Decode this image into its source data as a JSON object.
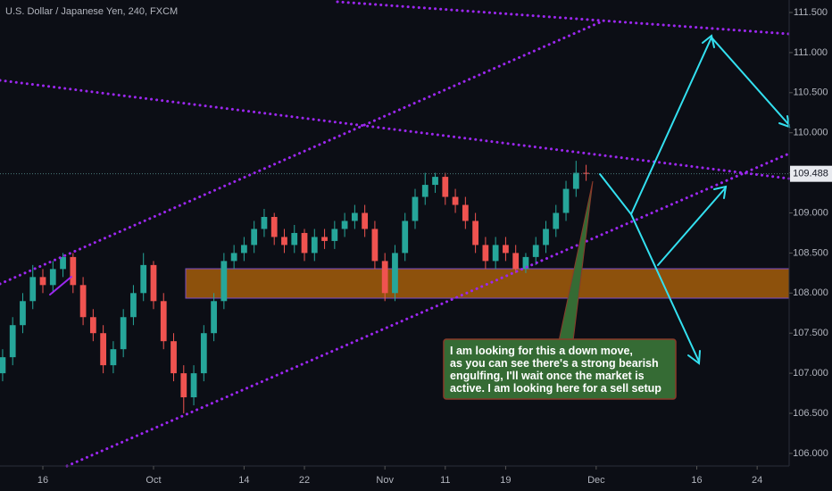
{
  "chart_data": {
    "type": "candlestick",
    "title": "U.S. Dollar / Japanese Yen, 240, FXCM",
    "x": [
      -4,
      -3,
      -2,
      -1,
      0,
      1,
      2,
      3,
      4,
      5,
      6,
      7,
      8,
      9,
      10,
      11,
      12,
      13,
      14,
      15,
      16,
      17,
      18,
      19,
      20,
      21,
      22,
      23,
      24,
      25,
      26,
      27,
      28,
      29,
      30,
      31,
      32,
      33,
      34,
      35,
      36,
      37,
      38,
      39,
      40,
      41,
      42,
      43,
      44,
      45,
      46,
      47,
      48,
      49,
      50,
      51,
      52,
      53,
      54
    ],
    "open": [
      107.0,
      107.2,
      107.6,
      107.9,
      108.2,
      108.1,
      108.3,
      108.45,
      108.1,
      107.7,
      107.5,
      107.1,
      107.3,
      107.7,
      108.0,
      108.35,
      107.9,
      107.4,
      107.0,
      106.7,
      107.0,
      107.5,
      107.9,
      108.4,
      108.5,
      108.6,
      108.8,
      108.95,
      108.7,
      108.6,
      108.75,
      108.5,
      108.7,
      108.65,
      108.8,
      108.9,
      109.0,
      108.8,
      108.4,
      108.0,
      108.5,
      108.9,
      109.2,
      109.35,
      109.45,
      109.2,
      109.1,
      108.9,
      108.6,
      108.4,
      108.6,
      108.5,
      108.3,
      108.45,
      108.6,
      108.8,
      109.0,
      109.3,
      109.5
    ],
    "high": [
      107.3,
      107.7,
      108.0,
      108.35,
      108.3,
      108.4,
      108.5,
      108.5,
      108.2,
      107.8,
      107.6,
      107.4,
      107.8,
      108.1,
      108.5,
      108.4,
      108.0,
      107.5,
      107.1,
      107.1,
      107.6,
      108.0,
      108.5,
      108.6,
      108.7,
      108.9,
      109.05,
      109.0,
      108.8,
      108.85,
      108.8,
      108.8,
      108.8,
      108.9,
      109.0,
      109.1,
      109.1,
      108.9,
      108.5,
      108.6,
      109.0,
      109.3,
      109.5,
      109.5,
      109.5,
      109.3,
      109.2,
      109.0,
      108.7,
      108.7,
      108.7,
      108.6,
      108.5,
      108.7,
      108.9,
      109.1,
      109.4,
      109.65,
      109.6
    ],
    "low": [
      106.9,
      107.1,
      107.5,
      107.8,
      108.0,
      108.0,
      108.2,
      108.0,
      107.6,
      107.4,
      107.0,
      107.0,
      107.2,
      107.6,
      107.9,
      107.8,
      107.3,
      106.9,
      106.5,
      106.6,
      106.9,
      107.4,
      107.8,
      108.3,
      108.4,
      108.5,
      108.7,
      108.6,
      108.5,
      108.5,
      108.4,
      108.4,
      108.55,
      108.55,
      108.7,
      108.8,
      108.7,
      108.3,
      107.9,
      107.9,
      108.4,
      108.8,
      109.1,
      109.25,
      109.1,
      109.0,
      108.8,
      108.5,
      108.3,
      108.3,
      108.4,
      108.25,
      108.25,
      108.35,
      108.5,
      108.7,
      108.9,
      109.2,
      109.4
    ],
    "close": [
      107.2,
      107.6,
      107.9,
      108.2,
      108.1,
      108.3,
      108.45,
      108.1,
      107.7,
      107.5,
      107.1,
      107.3,
      107.7,
      108.0,
      108.35,
      107.9,
      107.4,
      107.0,
      106.7,
      107.0,
      107.5,
      107.9,
      108.4,
      108.5,
      108.6,
      108.8,
      108.95,
      108.7,
      108.6,
      108.75,
      108.5,
      108.7,
      108.65,
      108.8,
      108.9,
      109.0,
      108.8,
      108.4,
      108.0,
      108.5,
      108.9,
      109.2,
      109.35,
      109.45,
      109.2,
      109.1,
      108.9,
      108.6,
      108.4,
      108.6,
      108.5,
      108.3,
      108.45,
      108.6,
      108.8,
      109.0,
      109.3,
      109.5,
      109.488
    ],
    "up_color": "#26a69a",
    "down_color": "#ef5350",
    "xlim": [
      -4.26,
      74.18
    ],
    "xticks": [
      {
        "value": 0,
        "label": "16"
      },
      {
        "value": 11,
        "label": "Oct"
      },
      {
        "value": 20,
        "label": "14"
      },
      {
        "value": 26,
        "label": "22"
      },
      {
        "value": 34,
        "label": "Nov"
      },
      {
        "value": 40,
        "label": "11"
      },
      {
        "value": 46,
        "label": "19"
      },
      {
        "value": 55,
        "label": "Dec"
      },
      {
        "value": 65,
        "label": "16"
      },
      {
        "value": 71,
        "label": "24"
      }
    ],
    "ylim": [
      105.843,
      111.656
    ],
    "yticks": [
      {
        "value": 106,
        "label": "106.000"
      },
      {
        "value": 106.5,
        "label": "106.500"
      },
      {
        "value": 107,
        "label": "107.000"
      },
      {
        "value": 107.5,
        "label": "107.500"
      },
      {
        "value": 108,
        "label": "108.000"
      },
      {
        "value": 108.5,
        "label": "108.500"
      },
      {
        "value": 109,
        "label": "109.000"
      },
      {
        "value": 109.5,
        "label": "109.500"
      },
      {
        "value": 110,
        "label": "110.000"
      },
      {
        "value": 110.5,
        "label": "110.500"
      },
      {
        "value": 111,
        "label": "111.000"
      },
      {
        "value": 111.5,
        "label": "111.500"
      }
    ],
    "last_price": 109.488,
    "annotation": [
      "I am looking for this a down move,",
      "as you can see there's a strong bearish",
      "engulfing, I'll wait once the market is",
      "active. I am looking here for a sell setup"
    ]
  }
}
